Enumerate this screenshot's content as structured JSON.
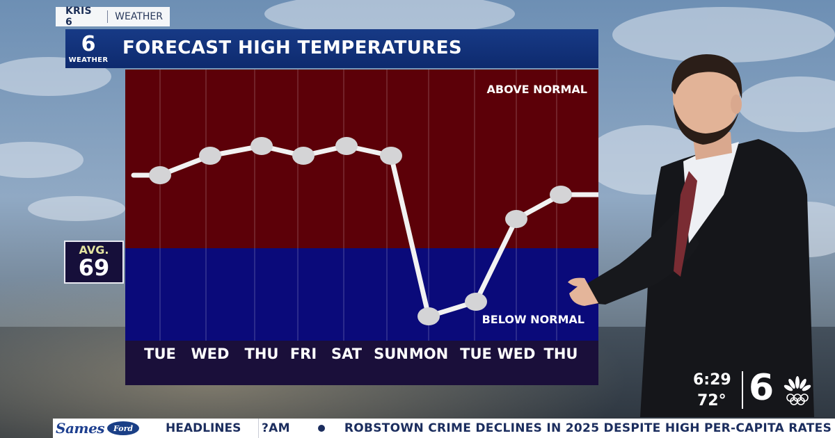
{
  "brand": {
    "station": "KRIS 6",
    "section": "WEATHER"
  },
  "title_bar": {
    "logo_number": "6",
    "logo_word": "WEATHER",
    "title": "FORECAST HIGH TEMPERATURES"
  },
  "chart": {
    "above_label": "ABOVE NORMAL",
    "below_label": "BELOW NORMAL",
    "days": [
      "TUE",
      "WED",
      "THU",
      "FRI",
      "SAT",
      "SUN",
      "MON",
      "TUE",
      "WED",
      "THU"
    ],
    "colors": {
      "above": "#5c0008",
      "below": "#0a0a7a",
      "line": "#f2f2f2",
      "dot": "#d4d4d6",
      "footer": "#1a0f3a"
    }
  },
  "chart_data": {
    "type": "line",
    "categories": [
      "TUE",
      "WED",
      "THU",
      "FRI",
      "SAT",
      "SUN",
      "MON",
      "TUE",
      "WED",
      "THU"
    ],
    "series": [
      {
        "values": [
          84,
          88,
          90,
          88,
          90,
          88,
          55,
          58,
          75,
          80
        ]
      }
    ],
    "reference_line": {
      "label": "AVG.",
      "value": 69
    },
    "ylim": [
      50,
      100
    ]
  },
  "avg": {
    "label": "AVG.",
    "value": "69"
  },
  "bug": {
    "time": "6:29",
    "temp": "72°",
    "logo": "6"
  },
  "ticker": {
    "sponsor": "Sames",
    "sponsor_badge": "Ford",
    "label": "HEADLINES",
    "prev_fragment": "?AM",
    "headline": "ROBSTOWN CRIME DECLINES IN 2025 DESPITE HIGH PER-CAPITA RATES"
  }
}
